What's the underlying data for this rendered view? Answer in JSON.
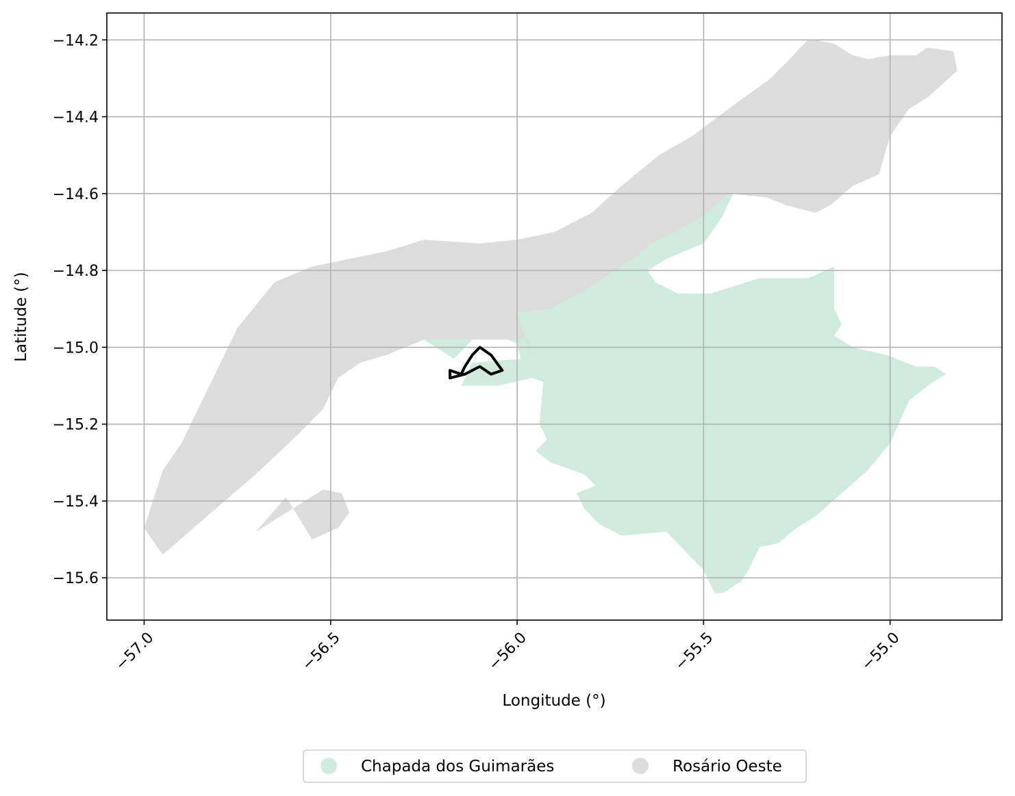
{
  "chart_data": {
    "type": "map",
    "title": "",
    "xlabel": "Longitude (°)",
    "ylabel": "Latitude (°)",
    "xlim": [
      -57.1,
      -54.7
    ],
    "ylim": [
      -15.71,
      -14.13
    ],
    "xticks": [
      -57.0,
      -56.5,
      -56.0,
      -55.5,
      -55.0
    ],
    "xtick_labels": [
      "−57.0",
      "−56.5",
      "−56.0",
      "−55.5",
      "−55.0"
    ],
    "yticks": [
      -14.2,
      -14.4,
      -14.6,
      -14.8,
      -15.0,
      -15.2,
      -15.4,
      -15.6
    ],
    "ytick_labels": [
      "−14.2",
      "−14.4",
      "−14.6",
      "−14.8",
      "−15.0",
      "−15.2",
      "−15.4",
      "−15.6"
    ],
    "grid": true,
    "legend_position": "bottom-center, below axes",
    "regions": [
      {
        "name": "Chapada dos Guimarães",
        "color": "#cfebde",
        "polygons": [
          [
            [
              -56.17,
              -15.03
            ],
            [
              -56.25,
              -14.98
            ],
            [
              -56.05,
              -14.97
            ],
            [
              -56.0,
              -14.99
            ],
            [
              -55.99,
              -15.03
            ],
            [
              -56.12,
              -15.04
            ],
            [
              -56.15,
              -15.1
            ],
            [
              -56.05,
              -15.1
            ],
            [
              -55.96,
              -15.08
            ],
            [
              -55.93,
              -15.09
            ],
            [
              -55.94,
              -15.2
            ],
            [
              -55.92,
              -15.24
            ],
            [
              -55.95,
              -15.27
            ],
            [
              -55.91,
              -15.3
            ],
            [
              -55.82,
              -15.33
            ],
            [
              -55.79,
              -15.36
            ],
            [
              -55.84,
              -15.38
            ],
            [
              -55.82,
              -15.42
            ],
            [
              -55.78,
              -15.46
            ],
            [
              -55.72,
              -15.49
            ],
            [
              -55.6,
              -15.48
            ],
            [
              -55.55,
              -15.53
            ],
            [
              -55.5,
              -15.58
            ],
            [
              -55.47,
              -15.64
            ],
            [
              -55.45,
              -15.64
            ],
            [
              -55.4,
              -15.61
            ],
            [
              -55.38,
              -15.58
            ],
            [
              -55.35,
              -15.52
            ],
            [
              -55.3,
              -15.51
            ],
            [
              -55.25,
              -15.47
            ],
            [
              -55.2,
              -15.44
            ],
            [
              -55.13,
              -15.38
            ],
            [
              -55.06,
              -15.32
            ],
            [
              -55.0,
              -15.25
            ],
            [
              -54.95,
              -15.14
            ],
            [
              -54.9,
              -15.1
            ],
            [
              -54.85,
              -15.07
            ],
            [
              -54.88,
              -15.05
            ],
            [
              -54.93,
              -15.05
            ],
            [
              -55.01,
              -15.02
            ],
            [
              -55.1,
              -15.0
            ],
            [
              -55.15,
              -14.97
            ],
            [
              -55.13,
              -14.94
            ],
            [
              -55.15,
              -14.9
            ],
            [
              -55.15,
              -14.79
            ],
            [
              -55.22,
              -14.82
            ],
            [
              -55.35,
              -14.82
            ],
            [
              -55.48,
              -14.86
            ],
            [
              -55.57,
              -14.86
            ],
            [
              -55.63,
              -14.83
            ],
            [
              -55.65,
              -14.8
            ],
            [
              -55.6,
              -14.77
            ],
            [
              -55.5,
              -14.73
            ],
            [
              -55.45,
              -14.66
            ],
            [
              -55.42,
              -14.6
            ],
            [
              -55.48,
              -14.6
            ],
            [
              -55.6,
              -14.66
            ],
            [
              -55.76,
              -14.74
            ],
            [
              -55.83,
              -14.82
            ],
            [
              -55.95,
              -14.9
            ],
            [
              -56.0,
              -14.89
            ],
            [
              -56.06,
              -14.91
            ],
            [
              -56.1,
              -14.95
            ],
            [
              -56.12,
              -14.98
            ]
          ]
        ]
      },
      {
        "name": "Rosário Oeste",
        "color": "#dcdcdc",
        "polygons": [
          [
            [
              -56.97,
              -15.38
            ],
            [
              -57.0,
              -15.47
            ],
            [
              -56.95,
              -15.54
            ],
            [
              -56.82,
              -15.43
            ],
            [
              -56.7,
              -15.33
            ],
            [
              -56.58,
              -15.22
            ],
            [
              -56.52,
              -15.16
            ],
            [
              -56.48,
              -15.08
            ],
            [
              -56.42,
              -15.04
            ],
            [
              -56.35,
              -15.02
            ],
            [
              -56.25,
              -14.98
            ],
            [
              -56.12,
              -14.98
            ],
            [
              -56.06,
              -14.98
            ],
            [
              -56.0,
              -14.98
            ],
            [
              -55.97,
              -14.98
            ],
            [
              -55.96,
              -15.03
            ],
            [
              -56.0,
              -14.91
            ],
            [
              -55.91,
              -14.9
            ],
            [
              -55.8,
              -14.84
            ],
            [
              -55.72,
              -14.79
            ],
            [
              -55.64,
              -14.73
            ],
            [
              -55.52,
              -14.67
            ],
            [
              -55.43,
              -14.6
            ],
            [
              -55.33,
              -14.61
            ],
            [
              -55.28,
              -14.63
            ],
            [
              -55.2,
              -14.65
            ],
            [
              -55.16,
              -14.63
            ],
            [
              -55.1,
              -14.58
            ],
            [
              -55.03,
              -14.55
            ],
            [
              -55.0,
              -14.45
            ],
            [
              -54.95,
              -14.38
            ],
            [
              -54.9,
              -14.35
            ],
            [
              -54.82,
              -14.28
            ],
            [
              -54.83,
              -14.23
            ],
            [
              -54.9,
              -14.22
            ],
            [
              -54.93,
              -14.24
            ],
            [
              -55.0,
              -14.24
            ],
            [
              -55.06,
              -14.25
            ],
            [
              -55.1,
              -14.24
            ],
            [
              -55.15,
              -14.21
            ],
            [
              -55.2,
              -14.2
            ],
            [
              -55.22,
              -14.2
            ],
            [
              -55.25,
              -14.23
            ],
            [
              -55.32,
              -14.3
            ],
            [
              -55.42,
              -14.37
            ],
            [
              -55.53,
              -14.45
            ],
            [
              -55.62,
              -14.5
            ],
            [
              -55.72,
              -14.58
            ],
            [
              -55.8,
              -14.65
            ],
            [
              -55.9,
              -14.7
            ],
            [
              -56.0,
              -14.72
            ],
            [
              -56.1,
              -14.73
            ],
            [
              -56.25,
              -14.72
            ],
            [
              -56.35,
              -14.75
            ],
            [
              -56.45,
              -14.77
            ],
            [
              -56.55,
              -14.79
            ],
            [
              -56.65,
              -14.83
            ],
            [
              -56.75,
              -14.95
            ],
            [
              -56.8,
              -15.05
            ],
            [
              -56.85,
              -15.15
            ],
            [
              -56.9,
              -15.25
            ],
            [
              -56.95,
              -15.32
            ]
          ],
          [
            [
              -56.7,
              -15.48
            ],
            [
              -56.62,
              -15.39
            ],
            [
              -56.6,
              -15.42
            ],
            [
              -56.55,
              -15.5
            ],
            [
              -56.48,
              -15.47
            ],
            [
              -56.45,
              -15.43
            ],
            [
              -56.47,
              -15.38
            ],
            [
              -56.52,
              -15.37
            ]
          ]
        ]
      }
    ],
    "outline": {
      "color": "#000000",
      "points": [
        [
          -56.18,
          -15.06
        ],
        [
          -56.15,
          -15.07
        ],
        [
          -56.14,
          -15.05
        ],
        [
          -56.12,
          -15.02
        ],
        [
          -56.1,
          -15.0
        ],
        [
          -56.07,
          -15.02
        ],
        [
          -56.04,
          -15.06
        ],
        [
          -56.07,
          -15.07
        ],
        [
          -56.1,
          -15.05
        ],
        [
          -56.14,
          -15.07
        ],
        [
          -56.18,
          -15.08
        ]
      ]
    },
    "legend": [
      {
        "label": "Chapada dos Guimarães",
        "color": "#cfebde"
      },
      {
        "label": "Rosário Oeste",
        "color": "#dcdcdc"
      }
    ]
  }
}
